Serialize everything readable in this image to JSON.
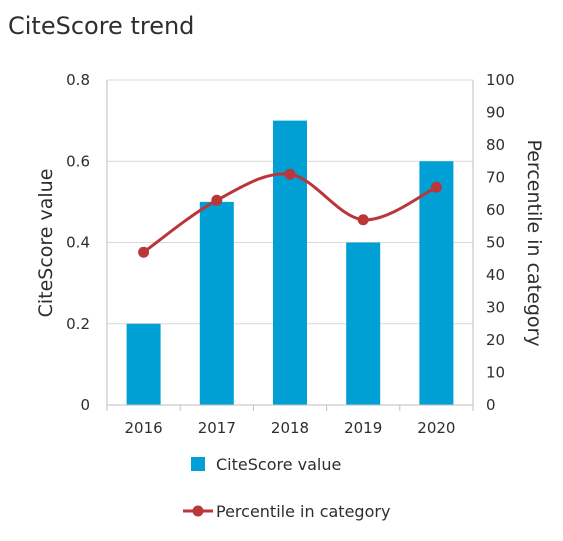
{
  "chart_data": {
    "type": "bar",
    "title": "CiteScore trend",
    "categories": [
      "2016",
      "2017",
      "2018",
      "2019",
      "2020"
    ],
    "series": [
      {
        "name": "CiteScore value",
        "type": "bar",
        "axis": "left",
        "color": "#009fd4",
        "values": [
          0.2,
          0.5,
          0.7,
          0.4,
          0.6
        ]
      },
      {
        "name": "Percentile in category",
        "type": "line",
        "axis": "right",
        "color": "#b9363b",
        "values": [
          47,
          63,
          71,
          57,
          67
        ]
      }
    ],
    "ylabel": "CiteScore value",
    "ylim": [
      0,
      0.8
    ],
    "yticks": [
      "0",
      "0.2",
      "0.4",
      "0.6",
      "0.8"
    ],
    "y2label": "Percentile in category",
    "y2lim": [
      0,
      100
    ],
    "y2ticks": [
      "0",
      "10",
      "20",
      "30",
      "40",
      "50",
      "60",
      "70",
      "80",
      "90",
      "100"
    ],
    "grid": true,
    "legend_position": "bottom"
  }
}
